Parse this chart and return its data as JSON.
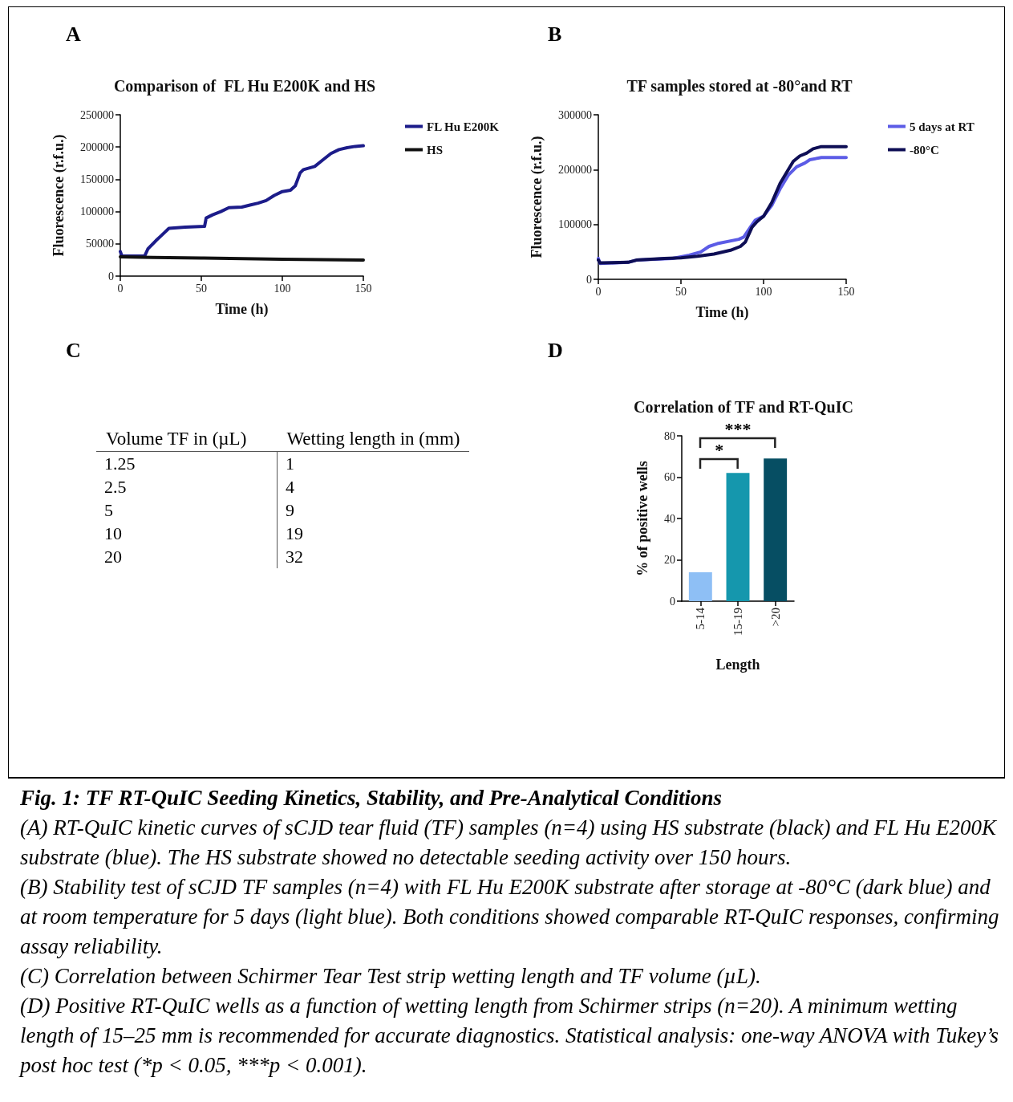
{
  "chart_data": [
    {
      "type": "line",
      "title": "Comparison of  FL Hu E200K and HS",
      "xlabel": "Time (h)",
      "ylabel": "Fluorescence (r.f.u.)",
      "annotations": [
        "A"
      ],
      "xlim": [
        0,
        150
      ],
      "xticks": [
        0,
        50,
        100,
        150
      ],
      "ylim": [
        0,
        250000
      ],
      "yticks": [
        0,
        50000,
        100000,
        150000,
        200000,
        250000
      ],
      "grid": false,
      "legend": "right",
      "marker": "none",
      "line_style": "solid",
      "series": [
        {
          "name": "FL Hu E200K",
          "color": "#1c1c8a",
          "x": [
            0,
            1,
            15,
            17,
            22,
            25,
            30,
            40,
            52,
            53,
            57,
            62,
            67,
            75,
            80,
            85,
            90,
            95,
            100,
            105,
            108,
            111,
            113,
            120,
            125,
            130,
            135,
            140,
            145,
            150
          ],
          "values": [
            38000,
            31000,
            31000,
            42000,
            55000,
            62000,
            74000,
            76000,
            77000,
            90000,
            95000,
            100000,
            106000,
            107000,
            110000,
            113000,
            117000,
            125000,
            131000,
            133000,
            140000,
            160000,
            165000,
            170000,
            180000,
            190000,
            196000,
            199000,
            201000,
            202000
          ]
        },
        {
          "name": "HS",
          "color": "#111111",
          "x": [
            0,
            20,
            50,
            100,
            150
          ],
          "values": [
            30000,
            29000,
            28000,
            26000,
            25000
          ]
        }
      ]
    },
    {
      "type": "line",
      "title": "TF samples stored at -80°and RT",
      "xlabel": "Time (h)",
      "ylabel": "Fluorescence (r.f.u.)",
      "annotations": [
        "B"
      ],
      "xlim": [
        0,
        150
      ],
      "xticks": [
        0,
        50,
        100,
        150
      ],
      "ylim": [
        0,
        300000
      ],
      "yticks": [
        0,
        100000,
        200000,
        300000
      ],
      "grid": false,
      "legend": "right",
      "marker": "none",
      "line_style": "solid",
      "series": [
        {
          "name": "5 days at RT",
          "color": "#5c5ce6",
          "x": [
            0,
            1,
            18,
            23,
            45,
            55,
            62,
            67,
            72,
            85,
            88,
            92,
            95,
            100,
            105,
            110,
            115,
            120,
            125,
            128,
            135,
            150
          ],
          "values": [
            38000,
            29000,
            31000,
            35000,
            38000,
            44000,
            50000,
            60000,
            65000,
            73000,
            77000,
            95000,
            108000,
            115000,
            135000,
            165000,
            190000,
            205000,
            212000,
            218000,
            222000,
            222000
          ]
        },
        {
          "name": "-80°C",
          "color": "#0e0e55",
          "x": [
            0,
            1,
            18,
            23,
            40,
            50,
            60,
            70,
            80,
            86,
            89,
            93,
            96,
            98,
            100,
            105,
            110,
            115,
            118,
            122,
            126,
            130,
            135,
            150
          ],
          "values": [
            35000,
            30000,
            31000,
            35000,
            38000,
            39000,
            42000,
            46000,
            53000,
            60000,
            68000,
            95000,
            105000,
            110000,
            115000,
            140000,
            175000,
            200000,
            215000,
            225000,
            230000,
            238000,
            242000,
            242000
          ]
        }
      ]
    },
    {
      "type": "other",
      "annotations": [
        "C",
        "Fig. 1: TF RT-QuIC Seeding Kinetics, Stability, and Pre-Analytical Conditions",
        "(A) RT-QuIC kinetic curves of sCJD tear fluid (TF) samples (n=4) using HS substrate (black) and FL Hu E200K substrate (blue). The HS substrate showed no detectable seeding activity over 150 hours.",
        "(B) Stability test of sCJD TF samples (n=4) with FL Hu E200K substrate after storage at -80°C (dark blue) and at room temperature for 5 days (light blue). Both conditions showed comparable RT-QuIC responses, confirming assay reliability.",
        "(C) Correlation between Schirmer Tear Test strip wetting length and TF volume (µL).",
        "(D) Positive RT-QuIC wells as a function of wetting length from Schirmer strips (n=20). A minimum wetting length of 15–25 mm is recommended for accurate diagnostics. Statistical analysis: one-way ANOVA with Tukey’s post hoc test (*p < 0.05, ***p < 0.001)."
      ],
      "xlabel": "Volume TF in (µL)",
      "ylabel": "Wetting length in (mm)",
      "categories": [
        "1.25",
        "2.5",
        "5",
        "10",
        "20"
      ],
      "values": [
        1,
        4,
        9,
        19,
        32
      ],
      "data_labels": true
    },
    {
      "type": "bar",
      "title": "Correlation of TF and RT-QuIC",
      "xlabel": "Length",
      "ylabel": "% of positive wells",
      "categories": [
        "5-14",
        "15-19",
        ">20"
      ],
      "values": [
        14,
        62,
        69
      ],
      "colors": [
        "#8ebff5",
        "#1597ad",
        "#064e63"
      ],
      "ylim": [
        0,
        80
      ],
      "yticks": [
        0,
        20,
        40,
        60,
        80
      ],
      "grid": false,
      "legend": false,
      "annotations": [
        "D",
        "*",
        "***"
      ]
    }
  ]
}
